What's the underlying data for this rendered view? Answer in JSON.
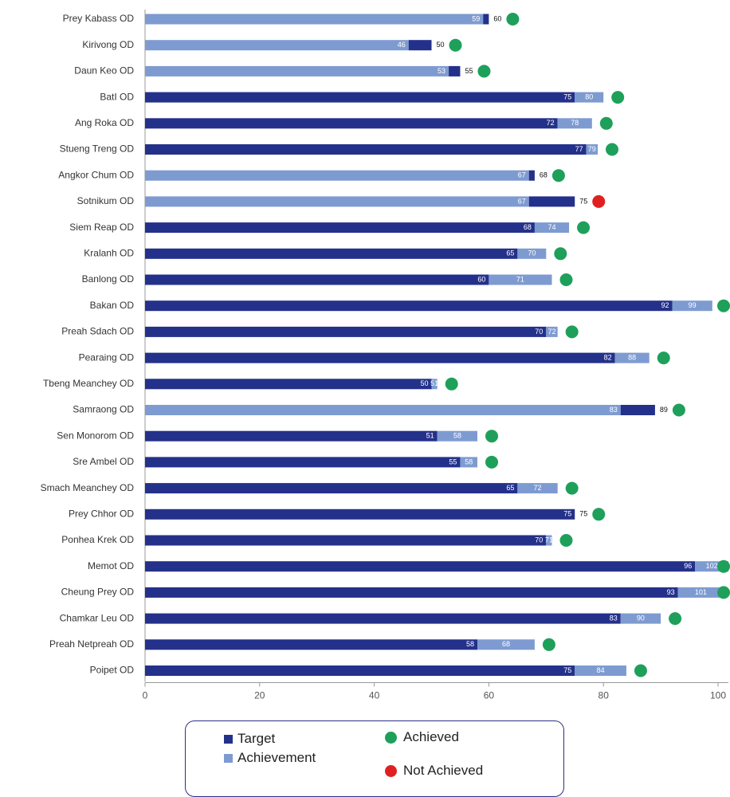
{
  "chart_data": {
    "type": "bar",
    "orientation": "horizontal",
    "xlim": [
      0,
      100
    ],
    "xticks": [
      0,
      20,
      40,
      60,
      80,
      100
    ],
    "grid": false,
    "colors": {
      "target": "#24318a",
      "achievement": "#7e9bd1",
      "achieved": "#1ea05a",
      "not_achieved": "#e02020"
    },
    "categories": [
      "Prey Kabass OD",
      "Kirivong OD",
      "Daun Keo OD",
      "BatI OD",
      "Ang Roka OD",
      "Stueng Treng OD",
      "Angkor Chum OD",
      "Sotnikum OD",
      "Siem Reap OD",
      "Kralanh OD",
      "Banlong OD",
      "Bakan OD",
      "Preah Sdach OD",
      "Pearaing OD",
      "Tbeng Meanchey OD",
      "Samraong OD",
      "Sen Monorom OD",
      "Sre Ambel OD",
      "Smach Meanchey OD",
      "Prey Chhor OD",
      "Ponhea Krek OD",
      "Memot OD",
      "Cheung Prey OD",
      "Chamkar Leu OD",
      "Preah Netpreah OD",
      "Poipet OD"
    ],
    "series": [
      {
        "name": "Target",
        "values": [
          60,
          50,
          55,
          75,
          72,
          77,
          68,
          75,
          68,
          65,
          60,
          92,
          70,
          82,
          50,
          89,
          51,
          55,
          65,
          75,
          70,
          96,
          93,
          83,
          58,
          75
        ]
      },
      {
        "name": "Achievement",
        "values": [
          59,
          46,
          53,
          80,
          78,
          79,
          67,
          67,
          74,
          70,
          71,
          99,
          72,
          88,
          51,
          83,
          58,
          58,
          72,
          75,
          71,
          102,
          101,
          90,
          68,
          84
        ]
      }
    ],
    "status": [
      "Achieved",
      "Achieved",
      "Achieved",
      "Achieved",
      "Achieved",
      "Achieved",
      "Achieved",
      "Not Achieved",
      "Achieved",
      "Achieved",
      "Achieved",
      "Achieved",
      "Achieved",
      "Achieved",
      "Achieved",
      "Achieved",
      "Achieved",
      "Achieved",
      "Achieved",
      "Achieved",
      "Achieved",
      "Achieved",
      "Achieved",
      "Achieved",
      "Achieved",
      "Achieved"
    ],
    "legend": {
      "position": "bottom",
      "target_label": "Target",
      "achievement_label": "Achievement",
      "achieved_label": "Achieved",
      "not_achieved_label": "Not Achieved"
    }
  }
}
